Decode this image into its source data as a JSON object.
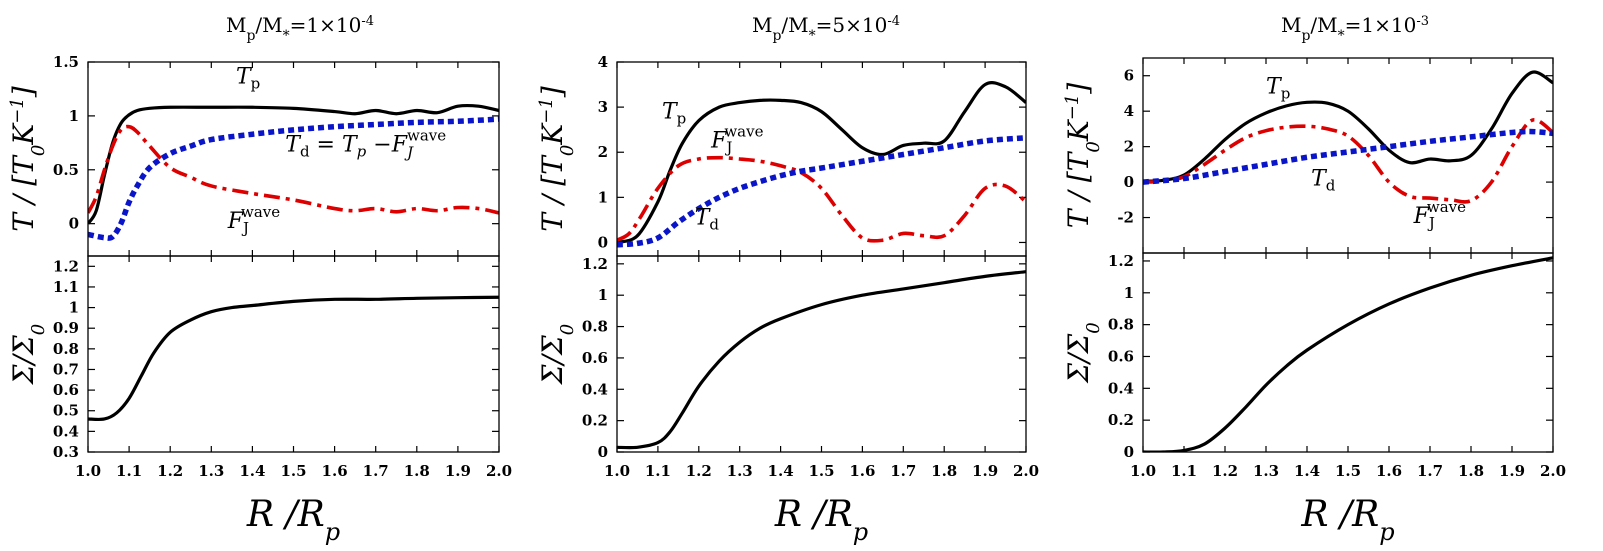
{
  "chart_data": [
    {
      "type": "line",
      "title": "M_p/M_*=1×10^-4",
      "title_parts": {
        "m1": "M",
        "s1": "p",
        "sl": "/M",
        "s2": "*",
        "eq": "=1×10",
        "exp": "-4"
      },
      "top": {
        "ylabel": "T / [T_0 K^-1]",
        "ylim": [
          -0.3,
          1.5
        ],
        "yticks": [
          0,
          0.5,
          1,
          1.5
        ],
        "ytick_labels": [
          "0",
          "0.5",
          "1",
          "1.5"
        ],
        "series": [
          {
            "name": "T_p",
            "style": "solid",
            "color": "#000000",
            "x": [
              1.0,
              1.02,
              1.04,
              1.06,
              1.08,
              1.1,
              1.12,
              1.15,
              1.2,
              1.3,
              1.4,
              1.5,
              1.6,
              1.65,
              1.7,
              1.75,
              1.8,
              1.85,
              1.9,
              1.95,
              2.0
            ],
            "y": [
              0.0,
              0.12,
              0.45,
              0.75,
              0.93,
              1.01,
              1.05,
              1.07,
              1.08,
              1.08,
              1.08,
              1.07,
              1.04,
              1.02,
              1.05,
              1.02,
              1.05,
              1.03,
              1.09,
              1.09,
              1.05
            ]
          },
          {
            "name": "F_J^wave",
            "style": "dashdot",
            "color": "#dd0000",
            "x": [
              1.0,
              1.02,
              1.04,
              1.06,
              1.08,
              1.1,
              1.12,
              1.15,
              1.2,
              1.25,
              1.3,
              1.4,
              1.5,
              1.6,
              1.65,
              1.7,
              1.75,
              1.8,
              1.85,
              1.9,
              1.95,
              2.0
            ],
            "y": [
              0.1,
              0.25,
              0.5,
              0.72,
              0.87,
              0.9,
              0.85,
              0.72,
              0.52,
              0.43,
              0.35,
              0.28,
              0.22,
              0.14,
              0.12,
              0.14,
              0.11,
              0.14,
              0.12,
              0.15,
              0.14,
              0.1
            ]
          },
          {
            "name": "T_d = T_p - F_J^wave",
            "style": "dotted",
            "color": "#0a14c8",
            "x": [
              1.0,
              1.04,
              1.06,
              1.08,
              1.1,
              1.12,
              1.15,
              1.2,
              1.25,
              1.3,
              1.4,
              1.5,
              1.6,
              1.7,
              1.8,
              1.9,
              2.0
            ],
            "y": [
              -0.1,
              -0.13,
              -0.12,
              0.0,
              0.2,
              0.35,
              0.52,
              0.65,
              0.72,
              0.78,
              0.83,
              0.87,
              0.9,
              0.92,
              0.94,
              0.95,
              0.97
            ]
          }
        ]
      },
      "bottom": {
        "ylabel": "Σ/Σ_0",
        "ylim": [
          0.3,
          1.25
        ],
        "yticks": [
          0.3,
          0.4,
          0.5,
          0.6,
          0.7,
          0.8,
          0.9,
          1,
          1.1,
          1.2
        ],
        "ytick_labels": [
          "0.3",
          "0.4",
          "0.5",
          "0.6",
          "0.7",
          "0.8",
          "0.9",
          "1",
          "1.1",
          "1.2"
        ],
        "series": [
          {
            "name": "Sigma",
            "style": "solid",
            "color": "#000000",
            "x": [
              1.0,
              1.04,
              1.07,
              1.1,
              1.13,
              1.16,
              1.2,
              1.25,
              1.3,
              1.35,
              1.4,
              1.5,
              1.6,
              1.7,
              1.8,
              1.9,
              2.0
            ],
            "y": [
              0.46,
              0.46,
              0.49,
              0.56,
              0.67,
              0.78,
              0.88,
              0.94,
              0.98,
              1.0,
              1.01,
              1.03,
              1.04,
              1.04,
              1.045,
              1.048,
              1.05
            ]
          }
        ]
      },
      "x": {
        "label": "R / R_p",
        "xlim": [
          1.0,
          2.0
        ],
        "ticks": [
          "1.0",
          "1.1",
          "1.2",
          "1.3",
          "1.4",
          "1.5",
          "1.6",
          "1.7",
          "1.8",
          "1.9",
          "2.0"
        ]
      },
      "annotations": [
        {
          "text_main": "T",
          "text_sub": "p",
          "x": 1.36,
          "y": 1.3
        },
        {
          "text_main": "T",
          "text_sub": "d",
          "text_rest": " = T",
          "text_sub2": "p",
          "text_rest2": " −F",
          "text_sub3": "J",
          "text_sup3": "wave",
          "x": 1.48,
          "y": 0.67
        },
        {
          "text_main": "F",
          "text_sub": "J",
          "text_sup": "wave",
          "x": 1.34,
          "y": -0.04
        }
      ]
    },
    {
      "type": "line",
      "title": "M_p/M_*=5×10^-4",
      "title_parts": {
        "m1": "M",
        "s1": "p",
        "sl": "/M",
        "s2": "*",
        "eq": "=5×10",
        "exp": "-4"
      },
      "top": {
        "ylabel": "T / [T_0 K^-1]",
        "ylim": [
          -0.3,
          4.0
        ],
        "yticks": [
          0,
          1,
          2,
          3,
          4
        ],
        "ytick_labels": [
          "0",
          "1",
          "2",
          "3",
          "4"
        ],
        "series": [
          {
            "name": "T_p",
            "style": "solid",
            "color": "#000000",
            "x": [
              1.0,
              1.05,
              1.1,
              1.13,
              1.16,
              1.2,
              1.25,
              1.3,
              1.35,
              1.4,
              1.45,
              1.5,
              1.55,
              1.6,
              1.65,
              1.7,
              1.75,
              1.8,
              1.85,
              1.9,
              1.95,
              2.0
            ],
            "y": [
              0.0,
              0.15,
              0.9,
              1.6,
              2.2,
              2.7,
              3.0,
              3.1,
              3.15,
              3.15,
              3.1,
              2.9,
              2.5,
              2.1,
              1.95,
              2.15,
              2.2,
              2.25,
              2.9,
              3.5,
              3.45,
              3.1
            ]
          },
          {
            "name": "F_J^wave",
            "style": "dashdot",
            "color": "#dd0000",
            "x": [
              1.0,
              1.03,
              1.06,
              1.1,
              1.15,
              1.2,
              1.25,
              1.3,
              1.35,
              1.4,
              1.45,
              1.5,
              1.55,
              1.6,
              1.65,
              1.7,
              1.75,
              1.8,
              1.85,
              1.9,
              1.95,
              2.0
            ],
            "y": [
              0.05,
              0.2,
              0.6,
              1.2,
              1.7,
              1.85,
              1.88,
              1.85,
              1.8,
              1.7,
              1.55,
              1.2,
              0.6,
              0.1,
              0.05,
              0.2,
              0.15,
              0.15,
              0.6,
              1.2,
              1.25,
              0.9
            ]
          },
          {
            "name": "T_d",
            "style": "dotted",
            "color": "#0a14c8",
            "x": [
              1.0,
              1.05,
              1.1,
              1.15,
              1.2,
              1.25,
              1.3,
              1.35,
              1.4,
              1.45,
              1.5,
              1.6,
              1.7,
              1.8,
              1.9,
              2.0
            ],
            "y": [
              -0.05,
              -0.02,
              0.1,
              0.45,
              0.75,
              1.0,
              1.2,
              1.35,
              1.48,
              1.58,
              1.65,
              1.8,
              1.95,
              2.1,
              2.25,
              2.32
            ]
          }
        ]
      },
      "bottom": {
        "ylabel": "Σ/Σ_0",
        "ylim": [
          0.0,
          1.25
        ],
        "yticks": [
          0,
          0.2,
          0.4,
          0.6,
          0.8,
          1,
          1.2
        ],
        "ytick_labels": [
          "0",
          "0.2",
          "0.4",
          "0.6",
          "0.8",
          "1",
          "1.2"
        ],
        "series": [
          {
            "name": "Sigma",
            "style": "solid",
            "color": "#000000",
            "x": [
              1.0,
              1.05,
              1.1,
              1.13,
              1.16,
              1.2,
              1.25,
              1.3,
              1.35,
              1.4,
              1.5,
              1.6,
              1.7,
              1.8,
              1.9,
              2.0
            ],
            "y": [
              0.03,
              0.03,
              0.06,
              0.13,
              0.25,
              0.42,
              0.58,
              0.7,
              0.79,
              0.85,
              0.94,
              1.0,
              1.04,
              1.08,
              1.12,
              1.15
            ]
          }
        ]
      },
      "x": {
        "label": "R / R_p",
        "xlim": [
          1.0,
          2.0
        ],
        "ticks": [
          "1.0",
          "1.1",
          "1.2",
          "1.3",
          "1.4",
          "1.5",
          "1.6",
          "1.7",
          "1.8",
          "1.9",
          "2.0"
        ]
      },
      "annotations": [
        {
          "text_main": "T",
          "text_sub": "p",
          "x": 1.11,
          "y": 2.75
        },
        {
          "text_main": "F",
          "text_sub": "J",
          "text_sup": "wave",
          "x": 1.23,
          "y": 2.1
        },
        {
          "text_main": "T",
          "text_sub": "d",
          "x": 1.19,
          "y": 0.4
        }
      ]
    },
    {
      "type": "line",
      "title": "M_p/M_*=1×10^-3",
      "title_parts": {
        "m1": "M",
        "s1": "p",
        "sl": "/M",
        "s2": "*",
        "eq": "=1×10",
        "exp": "-3"
      },
      "top": {
        "ylabel": "T / [T_0 K^-1]",
        "ylim": [
          -4.0,
          7.0
        ],
        "yticks": [
          -2,
          0,
          2,
          4,
          6
        ],
        "ytick_labels": [
          "-2",
          "0",
          "2",
          "4",
          "6"
        ],
        "series": [
          {
            "name": "T_p",
            "style": "solid",
            "color": "#000000",
            "x": [
              1.0,
              1.05,
              1.1,
              1.15,
              1.2,
              1.25,
              1.3,
              1.35,
              1.4,
              1.45,
              1.5,
              1.55,
              1.6,
              1.65,
              1.7,
              1.75,
              1.8,
              1.85,
              1.9,
              1.95,
              2.0
            ],
            "y": [
              0.05,
              0.1,
              0.4,
              1.3,
              2.4,
              3.3,
              3.9,
              4.3,
              4.5,
              4.45,
              4.0,
              3.0,
              1.8,
              1.1,
              1.3,
              1.2,
              1.5,
              3.0,
              5.0,
              6.2,
              5.6
            ]
          },
          {
            "name": "F_J^wave",
            "style": "dashdot",
            "color": "#dd0000",
            "x": [
              1.0,
              1.05,
              1.1,
              1.15,
              1.2,
              1.25,
              1.3,
              1.35,
              1.4,
              1.45,
              1.5,
              1.55,
              1.6,
              1.65,
              1.7,
              1.75,
              1.8,
              1.85,
              1.9,
              1.95,
              2.0
            ],
            "y": [
              0.0,
              0.05,
              0.3,
              1.0,
              1.8,
              2.5,
              2.9,
              3.1,
              3.15,
              3.0,
              2.6,
              1.5,
              0.0,
              -0.8,
              -0.9,
              -1.0,
              -1.05,
              0.0,
              2.0,
              3.5,
              2.8
            ]
          },
          {
            "name": "T_d",
            "style": "dotted",
            "color": "#0a14c8",
            "x": [
              1.0,
              1.1,
              1.2,
              1.3,
              1.4,
              1.5,
              1.6,
              1.7,
              1.8,
              1.9,
              1.95,
              2.0
            ],
            "y": [
              0.0,
              0.2,
              0.6,
              1.0,
              1.4,
              1.7,
              2.0,
              2.3,
              2.55,
              2.8,
              2.85,
              2.75
            ]
          }
        ]
      },
      "bottom": {
        "ylabel": "Σ/Σ_0",
        "ylim": [
          0.0,
          1.25
        ],
        "yticks": [
          0,
          0.2,
          0.4,
          0.6,
          0.8,
          1,
          1.2
        ],
        "ytick_labels": [
          "0",
          "0.2",
          "0.4",
          "0.6",
          "0.8",
          "1",
          "1.2"
        ],
        "series": [
          {
            "name": "Sigma",
            "style": "solid",
            "color": "#000000",
            "x": [
              1.0,
              1.05,
              1.1,
              1.15,
              1.2,
              1.25,
              1.3,
              1.35,
              1.4,
              1.5,
              1.6,
              1.7,
              1.8,
              1.9,
              2.0
            ],
            "y": [
              0.0,
              0.0,
              0.01,
              0.05,
              0.15,
              0.28,
              0.42,
              0.54,
              0.64,
              0.8,
              0.93,
              1.03,
              1.11,
              1.17,
              1.22
            ]
          }
        ]
      },
      "x": {
        "label": "R / R_p",
        "xlim": [
          1.0,
          2.0
        ],
        "ticks": [
          "1.0",
          "1.1",
          "1.2",
          "1.3",
          "1.4",
          "1.5",
          "1.6",
          "1.7",
          "1.8",
          "1.9",
          "2.0"
        ]
      },
      "annotations": [
        {
          "text_main": "T",
          "text_sub": "p",
          "x": 1.3,
          "y": 5.0
        },
        {
          "text_main": "T",
          "text_sub": "d",
          "x": 1.41,
          "y": -0.2
        },
        {
          "text_main": "F",
          "text_sub": "J",
          "text_sup": "wave",
          "x": 1.66,
          "y": -2.3
        }
      ]
    }
  ]
}
